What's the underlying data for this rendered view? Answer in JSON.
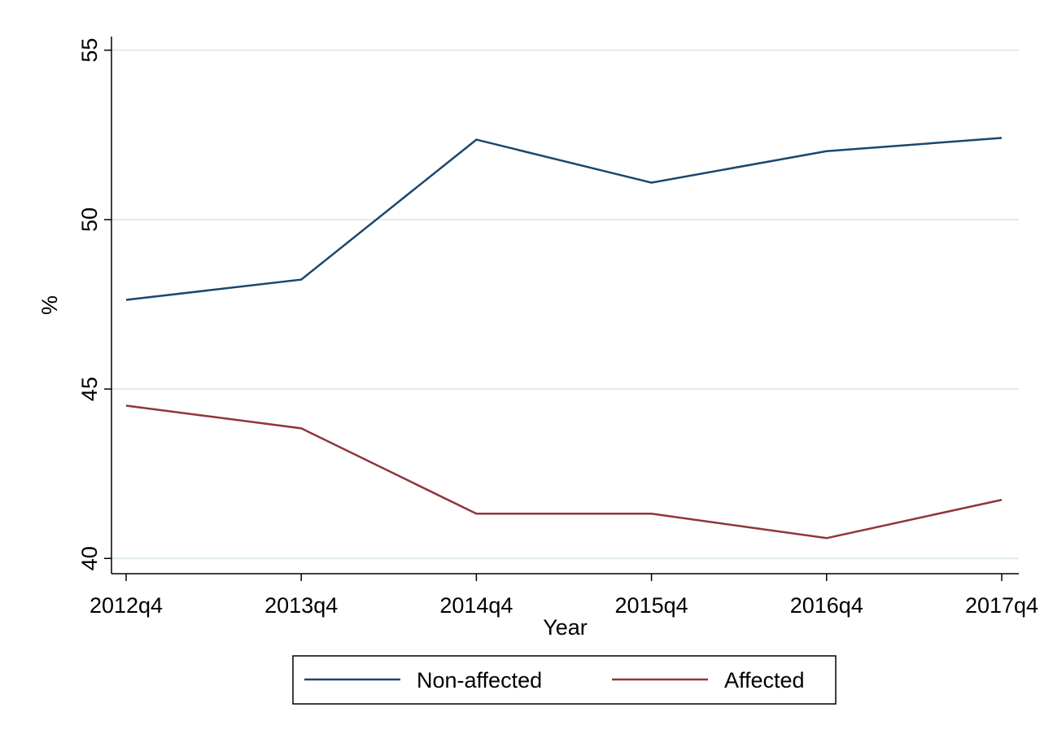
{
  "chart_data": {
    "type": "line",
    "x_label": "Year",
    "y_label": "%",
    "categories": [
      "2012q4",
      "2013q4",
      "2014q4",
      "2015q4",
      "2016q4",
      "2017q4"
    ],
    "series": [
      {
        "name": "Non-affected",
        "color": "#1a476f",
        "values": [
          47.63,
          48.23,
          52.36,
          51.09,
          52.02,
          52.41
        ]
      },
      {
        "name": "Affected",
        "color": "#90353b",
        "values": [
          44.51,
          43.84,
          41.32,
          41.32,
          40.6,
          41.73
        ]
      }
    ],
    "ylim": [
      39.55,
      55.4
    ],
    "yticks": [
      40,
      45,
      50,
      55
    ],
    "grid": true,
    "legend": "bottom"
  }
}
